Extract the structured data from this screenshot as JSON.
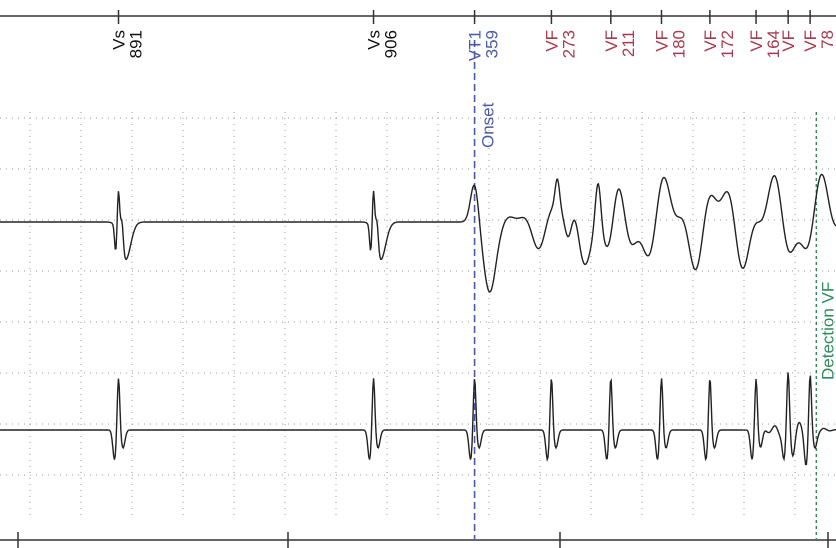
{
  "chart_data": {
    "type": "line",
    "title": "",
    "xlabel": "",
    "ylabel": "",
    "grid": true,
    "colors": {
      "sensed": "#111111",
      "vt": "#4a5aa8",
      "vf": "#a83a4e",
      "detection": "#2e8b57",
      "trace": "#222222",
      "grid": "#9a9a9a"
    },
    "markers": [
      {
        "kind": "vs",
        "label": "Vs",
        "interval": "891",
        "t": 891
      },
      {
        "kind": "vs",
        "label": "Vs",
        "interval": "906",
        "t": 1797
      },
      {
        "kind": "vt",
        "label": "VT1",
        "interval": "359",
        "t": 2156
      },
      {
        "kind": "vf",
        "label": "VF",
        "interval": "273",
        "t": 2429
      },
      {
        "kind": "vf",
        "label": "VF",
        "interval": "211",
        "t": 2640
      },
      {
        "kind": "vf",
        "label": "VF",
        "interval": "180",
        "t": 2820
      },
      {
        "kind": "vf",
        "label": "VF",
        "interval": "172",
        "t": 2992
      },
      {
        "kind": "vf",
        "label": "VF",
        "interval": "164",
        "t": 3156
      },
      {
        "kind": "vf",
        "label": "VF",
        "interval": "",
        "t": 3270
      },
      {
        "kind": "vf",
        "label": "VF",
        "interval": "78",
        "t": 3348
      }
    ],
    "annotations": [
      {
        "kind": "onset",
        "text": "Onset",
        "t": 2156
      },
      {
        "kind": "detection",
        "text": "Detection VF",
        "t": 3370
      }
    ],
    "t_range_ms": [
      470,
      3440
    ],
    "series": [
      {
        "name": "",
        "channel": "top",
        "beats_t": [
          891,
          1797,
          2156,
          2429,
          2640,
          2820,
          2992,
          3156,
          3270,
          3348
        ]
      },
      {
        "name": "",
        "channel": "bottom",
        "beats_t": [
          891,
          1797,
          2156,
          2429,
          2640,
          2820,
          2992,
          3156,
          3270,
          3348
        ]
      }
    ]
  }
}
